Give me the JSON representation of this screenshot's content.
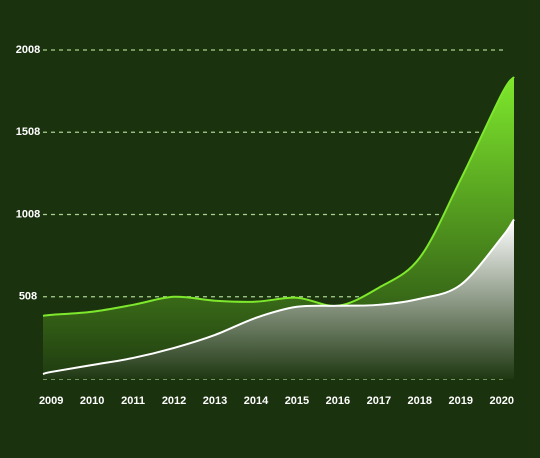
{
  "chart_data": {
    "type": "area",
    "x": [
      2008.8,
      2009,
      2010,
      2011,
      2012,
      2013,
      2014,
      2015,
      2016,
      2017,
      2018,
      2019,
      2020,
      2020.3
    ],
    "xlim": [
      2008.8,
      2020.3
    ],
    "xticks": [
      2009,
      2010,
      2011,
      2012,
      2013,
      2014,
      2015,
      2016,
      2017,
      2018,
      2019,
      2020
    ],
    "series": [
      {
        "color": "#7ee82c",
        "values": [
          392,
          398,
          417,
          459,
          508,
          484,
          478,
          502,
          453,
          563,
          746,
          1222,
          1740,
          1844
        ]
      },
      {
        "color": "#ffffff",
        "values": [
          38,
          51,
          93,
          136,
          197,
          276,
          380,
          447,
          453,
          459,
          496,
          581,
          868,
          978
        ]
      }
    ],
    "ylim": [
      8,
      2008
    ],
    "yticks": [
      508,
      1008,
      1508,
      2008
    ],
    "grid": true
  }
}
